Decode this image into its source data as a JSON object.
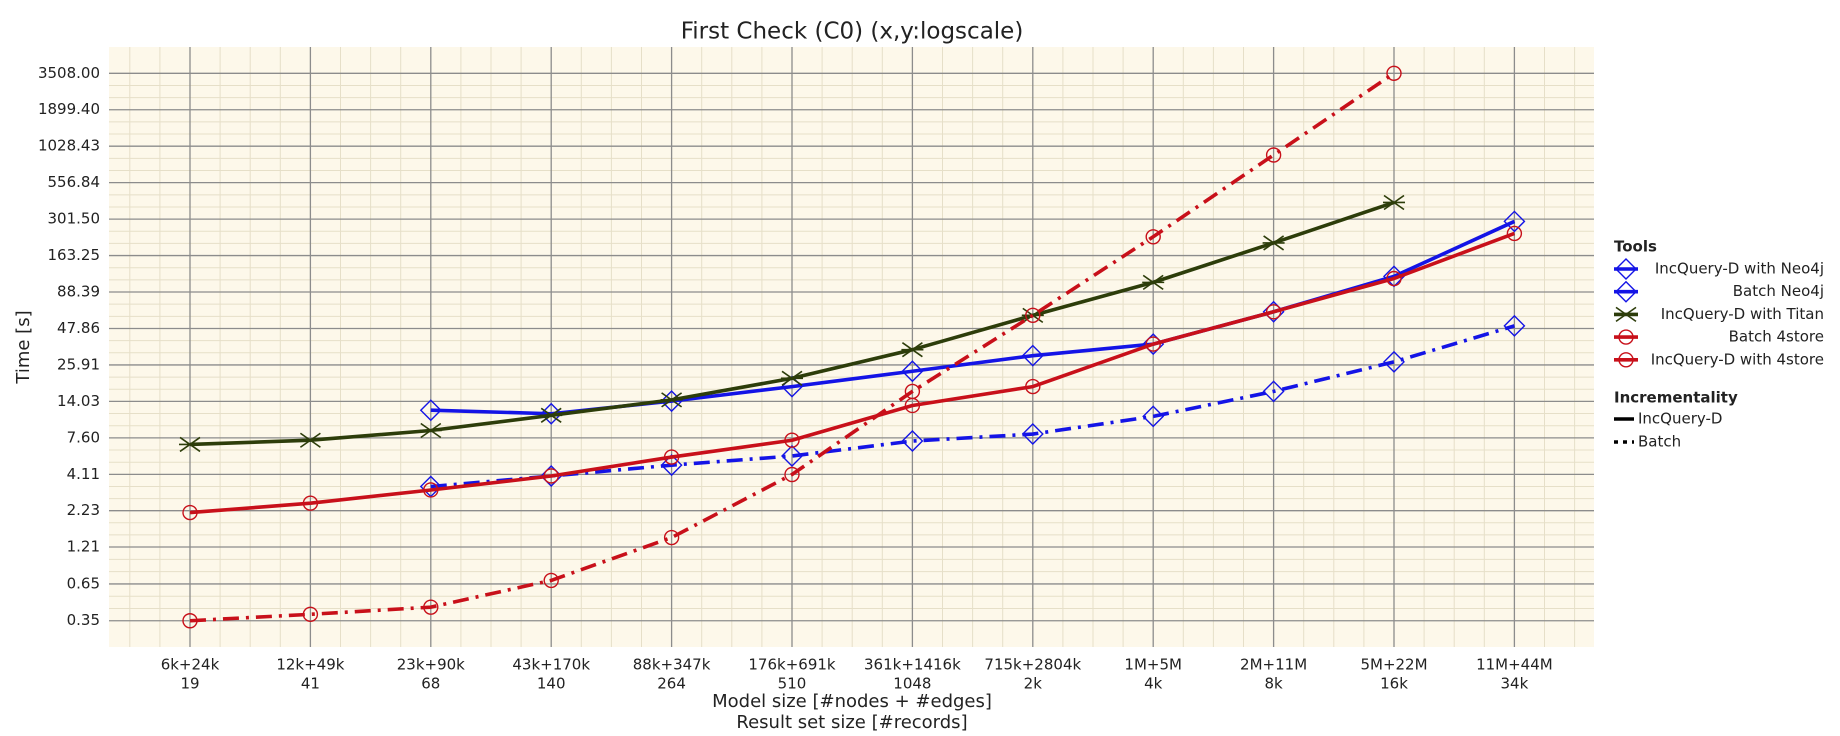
{
  "chart_data": {
    "type": "line",
    "title": "First Check (C0) (x,y:logscale)",
    "xlabel": "Model size [#nodes + #edges]",
    "xlabel2": "Result set size [#records]",
    "ylabel": "Time [s]",
    "categories": [
      "6k+24k",
      "12k+49k",
      "23k+90k",
      "43k+170k",
      "88k+347k",
      "176k+691k",
      "361k+1416k",
      "715k+2804k",
      "1M+5M",
      "2M+11M",
      "5M+22M",
      "11M+44M"
    ],
    "result_set_sizes": [
      "19",
      "41",
      "68",
      "140",
      "264",
      "510",
      "1048",
      "2k",
      "4k",
      "8k",
      "16k",
      "34k"
    ],
    "ylog": true,
    "grid": true,
    "ylim": [
      0.225,
      5460
    ],
    "yticks": [
      0.35,
      0.65,
      1.21,
      2.23,
      4.11,
      {
        "value": 7.6,
        "label": "7.60"
      },
      14.03,
      25.91,
      47.86,
      88.39,
      163.25,
      {
        "value": 301.5,
        "label": "301.50"
      },
      556.84,
      1028.43,
      {
        "value": 1899.4,
        "label": "1899.40"
      },
      {
        "value": 3508,
        "label": "3508.00"
      }
    ],
    "legend_title": "Tools",
    "series": [
      {
        "name": "IncQuery-D with Neo4j",
        "color": "#1414e6",
        "marker": "diamond",
        "dashed": false,
        "values": [
          null,
          null,
          12.1,
          11.4,
          14.1,
          18,
          23.3,
          30.3,
          36.8,
          63.4,
          115,
          290
        ]
      },
      {
        "name": "Batch Neo4j",
        "color": "#1414e6",
        "marker": "diamond",
        "dashed": true,
        "values": [
          null,
          null,
          3.35,
          4.0,
          4.8,
          5.6,
          7.2,
          8.1,
          10.9,
          16.6,
          27.3,
          50
        ]
      },
      {
        "name": "IncQuery-D with Titan",
        "color": "#2d3d0a",
        "marker": "star",
        "dashed": false,
        "values": [
          6.8,
          7.3,
          8.6,
          11.1,
          14.4,
          20.7,
          33.5,
          59.7,
          104,
          202,
          399,
          null
        ]
      },
      {
        "name": "Batch 4store",
        "color": "#c8101a",
        "marker": "circle",
        "dashed": true,
        "values": [
          0.35,
          0.39,
          0.44,
          0.69,
          1.42,
          4.1,
          16.6,
          59.7,
          224,
          887,
          3508,
          null
        ]
      },
      {
        "name": "IncQuery-D with 4store",
        "color": "#c8101a",
        "marker": "circle",
        "dashed": false,
        "values": [
          2.16,
          2.53,
          3.16,
          4.0,
          5.5,
          7.3,
          13.1,
          18,
          36.8,
          63.4,
          111,
          237
        ]
      }
    ],
    "linestyle_legend_title": "Incrementality",
    "linestyle_legend": [
      {
        "name": "IncQuery-D",
        "dashed": false
      },
      {
        "name": "Batch",
        "dashed": true
      }
    ]
  }
}
